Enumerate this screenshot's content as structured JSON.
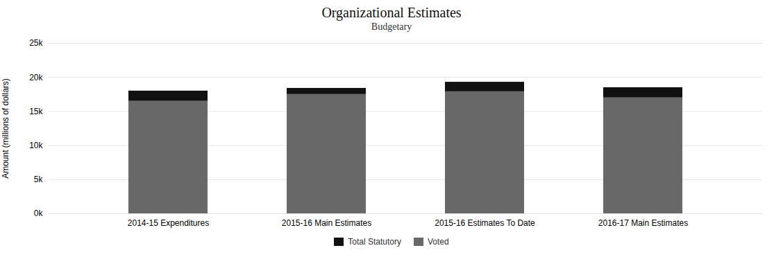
{
  "chart_data": {
    "type": "bar",
    "stacked": true,
    "title": "Organizational Estimates",
    "subtitle": "Budgetary",
    "categories": [
      "2014-15 Expenditures",
      "2015-16 Main Estimates",
      "2015-16 Estimates To Date",
      "2016-17 Main Estimates"
    ],
    "series": [
      {
        "name": "Voted",
        "color": "#686868",
        "values": [
          16500,
          17500,
          17900,
          17000
        ]
      },
      {
        "name": "Total Statutory",
        "color": "#111111",
        "values": [
          1500,
          900,
          1400,
          1500
        ]
      }
    ],
    "ylabel": "Amount (millions of dollars)",
    "ylim": [
      0,
      25000
    ],
    "yticks": [
      {
        "value": 0,
        "label": "0k"
      },
      {
        "value": 5000,
        "label": "5k"
      },
      {
        "value": 10000,
        "label": "10k"
      },
      {
        "value": 15000,
        "label": "15k"
      },
      {
        "value": 20000,
        "label": "20k"
      },
      {
        "value": 25000,
        "label": "25k"
      }
    ],
    "grid": true,
    "legend": "bottom"
  }
}
